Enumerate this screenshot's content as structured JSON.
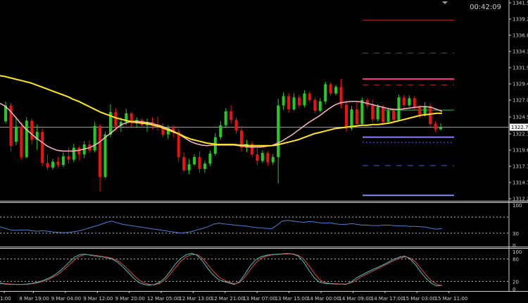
{
  "clock": "00:42:09",
  "chart_data": {
    "type": "candlestick",
    "main": {
      "price_ticks": [
        "1341.5",
        "1339.2",
        "1336.8",
        "1334.3",
        "1331.9",
        "1329.4",
        "1327.0",
        "1324.5",
        "1322.1",
        "1319.6",
        "1317.1",
        "1314.7",
        "1312.2"
      ],
      "current_price": "1322.7",
      "current_price_value": 1322.7,
      "ylim": [
        1311.9,
        1341.6
      ],
      "candles": [
        [
          1323.6,
          1326.6,
          1323.3,
          1326.0
        ],
        [
          1326.0,
          1326.4,
          1319.0,
          1319.9
        ],
        [
          1320.5,
          1324.0,
          1320.0,
          1322.8
        ],
        [
          1322.8,
          1323.5,
          1317.8,
          1318.2
        ],
        [
          1318.2,
          1324.2,
          1318.0,
          1323.7
        ],
        [
          1323.7,
          1324.0,
          1320.1,
          1320.8
        ],
        [
          1320.8,
          1323.1,
          1319.3,
          1322.0
        ],
        [
          1322.0,
          1322.5,
          1316.8,
          1317.3
        ],
        [
          1317.3,
          1318.6,
          1316.2,
          1316.6
        ],
        [
          1316.6,
          1317.9,
          1316.3,
          1317.5
        ],
        [
          1317.5,
          1318.2,
          1316.6,
          1317.0
        ],
        [
          1317.0,
          1318.9,
          1316.7,
          1318.3
        ],
        [
          1318.3,
          1319.6,
          1317.2,
          1317.8
        ],
        [
          1317.8,
          1320.2,
          1317.4,
          1319.6
        ],
        [
          1319.6,
          1319.9,
          1317.7,
          1318.6
        ],
        [
          1318.6,
          1320.6,
          1318.0,
          1320.1
        ],
        [
          1320.1,
          1320.7,
          1318.8,
          1319.2
        ],
        [
          1319.2,
          1323.5,
          1318.9,
          1322.9
        ],
        [
          1322.9,
          1323.2,
          1313.0,
          1315.2
        ],
        [
          1315.2,
          1322.0,
          1315.0,
          1321.6
        ],
        [
          1321.6,
          1326.2,
          1321.2,
          1325.0
        ],
        [
          1325.0,
          1325.6,
          1322.1,
          1322.9
        ],
        [
          1322.9,
          1324.2,
          1322.0,
          1323.5
        ],
        [
          1323.5,
          1325.5,
          1323.0,
          1324.8
        ],
        [
          1324.8,
          1325.0,
          1322.7,
          1323.3
        ],
        [
          1323.3,
          1324.2,
          1322.6,
          1323.8
        ],
        [
          1323.8,
          1324.1,
          1322.6,
          1323.0
        ],
        [
          1323.0,
          1324.0,
          1322.0,
          1323.5
        ],
        [
          1323.5,
          1324.2,
          1322.4,
          1323.0
        ],
        [
          1323.0,
          1324.3,
          1322.2,
          1322.8
        ],
        [
          1322.8,
          1323.3,
          1321.2,
          1321.6
        ],
        [
          1321.6,
          1323.0,
          1320.9,
          1322.6
        ],
        [
          1322.6,
          1323.0,
          1321.2,
          1322.0
        ],
        [
          1322.0,
          1322.5,
          1317.5,
          1318.2
        ],
        [
          1318.2,
          1318.9,
          1315.9,
          1316.2
        ],
        [
          1316.2,
          1317.9,
          1315.6,
          1317.1
        ],
        [
          1317.1,
          1318.6,
          1316.9,
          1318.2
        ],
        [
          1318.2,
          1319.1,
          1315.8,
          1316.4
        ],
        [
          1316.4,
          1317.6,
          1315.8,
          1317.2
        ],
        [
          1317.2,
          1319.2,
          1316.8,
          1318.7
        ],
        [
          1318.7,
          1321.8,
          1318.4,
          1321.2
        ],
        [
          1321.2,
          1323.6,
          1320.8,
          1323.0
        ],
        [
          1323.0,
          1325.6,
          1322.6,
          1325.1
        ],
        [
          1325.1,
          1326.0,
          1323.2,
          1323.8
        ],
        [
          1323.8,
          1324.2,
          1321.7,
          1322.2
        ],
        [
          1322.2,
          1322.9,
          1319.0,
          1319.6
        ],
        [
          1319.6,
          1320.8,
          1318.9,
          1320.2
        ],
        [
          1320.2,
          1320.6,
          1318.2,
          1318.6
        ],
        [
          1318.6,
          1319.6,
          1317.0,
          1317.6
        ],
        [
          1317.6,
          1319.2,
          1317.3,
          1318.8
        ],
        [
          1318.8,
          1319.1,
          1316.9,
          1317.4
        ],
        [
          1317.4,
          1318.6,
          1317.0,
          1318.2
        ],
        [
          1318.2,
          1327.0,
          1314.2,
          1326.0
        ],
        [
          1326.0,
          1328.0,
          1325.3,
          1327.4
        ],
        [
          1327.4,
          1327.9,
          1324.9,
          1325.4
        ],
        [
          1325.4,
          1327.8,
          1325.2,
          1327.2
        ],
        [
          1327.2,
          1327.6,
          1325.6,
          1326.0
        ],
        [
          1326.0,
          1328.3,
          1325.7,
          1327.8
        ],
        [
          1327.8,
          1328.1,
          1326.4,
          1326.8
        ],
        [
          1326.8,
          1327.2,
          1324.8,
          1325.2
        ],
        [
          1325.2,
          1327.1,
          1325.0,
          1326.6
        ],
        [
          1326.6,
          1329.6,
          1326.2,
          1329.2
        ],
        [
          1329.2,
          1329.5,
          1327.4,
          1327.8
        ],
        [
          1327.8,
          1329.1,
          1327.5,
          1328.8
        ],
        [
          1328.8,
          1330.0,
          1325.6,
          1326.1
        ],
        [
          1326.1,
          1326.8,
          1322.0,
          1322.5
        ],
        [
          1322.5,
          1325.9,
          1322.2,
          1325.4
        ],
        [
          1325.4,
          1326.5,
          1322.8,
          1323.2
        ],
        [
          1323.2,
          1327.2,
          1322.9,
          1326.8
        ],
        [
          1326.8,
          1327.1,
          1325.5,
          1326.0
        ],
        [
          1326.0,
          1326.9,
          1323.4,
          1323.9
        ],
        [
          1323.9,
          1326.2,
          1323.6,
          1325.8
        ],
        [
          1325.8,
          1326.1,
          1323.0,
          1323.5
        ],
        [
          1323.5,
          1325.6,
          1323.2,
          1325.2
        ],
        [
          1325.2,
          1325.5,
          1323.3,
          1323.8
        ],
        [
          1323.8,
          1327.6,
          1323.6,
          1327.2
        ],
        [
          1327.2,
          1327.6,
          1325.6,
          1326.0
        ],
        [
          1326.0,
          1327.5,
          1325.8,
          1327.1
        ],
        [
          1327.1,
          1327.4,
          1325.2,
          1325.7
        ],
        [
          1325.7,
          1326.1,
          1324.1,
          1324.6
        ],
        [
          1324.6,
          1326.5,
          1324.3,
          1325.9
        ],
        [
          1325.9,
          1326.3,
          1322.8,
          1323.2
        ],
        [
          1323.2,
          1323.6,
          1322.0,
          1322.4
        ],
        [
          1322.4,
          1323.3,
          1322.2,
          1322.7
        ]
      ],
      "ma_yellow": [
        1330.5,
        1330.4,
        1330.2,
        1330.0,
        1329.8,
        1329.6,
        1329.4,
        1329.1,
        1328.8,
        1328.5,
        1328.2,
        1327.9,
        1327.6,
        1327.3,
        1326.9,
        1326.6,
        1326.2,
        1325.8,
        1325.4,
        1325.0,
        1324.7,
        1324.4,
        1324.1,
        1323.9,
        1323.7,
        1323.5,
        1323.4,
        1323.3,
        1323.2,
        1323.0,
        1322.8,
        1322.5,
        1322.2,
        1321.9,
        1321.6,
        1321.2,
        1320.9,
        1320.7,
        1320.5,
        1320.3,
        1320.2,
        1320.1,
        1320.1,
        1320.1,
        1320.1,
        1320.0,
        1320.0,
        1319.9,
        1319.9,
        1319.9,
        1319.9,
        1319.9,
        1320.0,
        1320.2,
        1320.4,
        1320.6,
        1320.8,
        1321.1,
        1321.4,
        1321.7,
        1321.9,
        1322.1,
        1322.3,
        1322.5,
        1322.6,
        1322.7,
        1322.8,
        1322.9,
        1323.0,
        1323.0,
        1323.1,
        1323.1,
        1323.2,
        1323.3,
        1323.5,
        1323.7,
        1323.9,
        1324.1,
        1324.3,
        1324.5,
        1324.6,
        1324.7,
        1324.8,
        1324.8
      ],
      "ma_pink": [
        1326.4,
        1326.0,
        1325.3,
        1324.4,
        1323.4,
        1322.5,
        1321.8,
        1321.1,
        1320.5,
        1319.9,
        1319.5,
        1319.2,
        1319.1,
        1319.1,
        1319.1,
        1319.2,
        1319.4,
        1319.6,
        1320.0,
        1320.5,
        1321.2,
        1321.8,
        1322.5,
        1323.1,
        1323.4,
        1323.6,
        1323.6,
        1323.5,
        1323.4,
        1323.2,
        1323.0,
        1322.7,
        1322.4,
        1322.0,
        1321.5,
        1321.0,
        1320.5,
        1320.2,
        1320.0,
        1319.9,
        1320.0,
        1320.0,
        1320.0,
        1320.0,
        1320.0,
        1319.9,
        1319.8,
        1319.7,
        1319.7,
        1319.7,
        1319.8,
        1319.9,
        1320.2,
        1320.6,
        1321.1,
        1321.6,
        1322.2,
        1322.8,
        1323.4,
        1323.9,
        1324.4,
        1325.0,
        1325.6,
        1326.1,
        1326.4,
        1326.5,
        1326.6,
        1326.6,
        1326.5,
        1326.3,
        1326.1,
        1325.9,
        1325.7,
        1325.5,
        1325.4,
        1325.4,
        1325.5,
        1325.6,
        1325.7,
        1325.8,
        1325.8,
        1325.7,
        1325.4,
        1325.1
      ],
      "levels": [
        {
          "price": 1338.9,
          "color": "#b0202a",
          "style": "solid",
          "width": 1
        },
        {
          "price": 1333.9,
          "color": "#b0202a",
          "style": "dashed",
          "width": 1
        },
        {
          "price": 1330.0,
          "color": "#ff2a8a",
          "style": "solid",
          "width": 2
        },
        {
          "price": 1329.1,
          "color": "#b0202a",
          "style": "dashed",
          "width": 1
        },
        {
          "price": 1325.3,
          "color": "#2fbf55",
          "style": "solid",
          "width": 1
        },
        {
          "price": 1321.2,
          "color": "#8a7cff",
          "style": "solid",
          "width": 2
        },
        {
          "price": 1320.4,
          "color": "#4466ff",
          "style": "dotted",
          "width": 1
        },
        {
          "price": 1316.9,
          "color": "#3a5fd8",
          "style": "dashed",
          "width": 1
        },
        {
          "price": 1312.4,
          "color": "#7a8cff",
          "style": "solid",
          "width": 2
        }
      ],
      "up_color": "#22cc22",
      "down_color": "#ee1111",
      "ma_yellow_color": "#ffe81a",
      "ma_pink_color": "#ffb6c8"
    },
    "rsi": {
      "ticks": [
        "100",
        "30",
        "0"
      ],
      "ylim": [
        0,
        100
      ],
      "levels": [
        70,
        30
      ],
      "color": "#4a7fd0",
      "values": [
        46,
        42,
        38,
        37,
        38,
        38,
        36,
        35,
        36,
        35,
        33,
        32,
        31,
        32,
        34,
        36,
        40,
        44,
        48,
        52,
        57,
        60,
        56,
        52,
        50,
        48,
        46,
        44,
        42,
        40,
        38,
        36,
        34,
        32,
        30,
        32,
        34,
        38,
        42,
        46,
        52,
        55,
        53,
        52,
        50,
        49,
        48,
        46,
        44,
        43,
        42,
        41,
        50,
        60,
        62,
        60,
        58,
        57,
        59,
        58,
        56,
        55,
        56,
        53,
        52,
        52,
        54,
        52,
        50,
        50,
        49,
        49,
        50,
        50,
        49,
        48,
        48,
        47,
        47,
        46,
        45,
        42,
        40,
        42
      ]
    },
    "stoch": {
      "ticks": [
        "100",
        "80",
        "20",
        "0"
      ],
      "ylim": [
        0,
        100
      ],
      "levels": [
        80,
        20
      ],
      "main_color": "#3fc8c8",
      "signal_color": "#e04040",
      "main": [
        15,
        13,
        12,
        12,
        12,
        13,
        15,
        18,
        22,
        28,
        35,
        45,
        58,
        72,
        85,
        92,
        93,
        90,
        88,
        86,
        84,
        80,
        72,
        60,
        45,
        30,
        18,
        12,
        10,
        12,
        18,
        30,
        48,
        68,
        82,
        92,
        95,
        90,
        75,
        55,
        38,
        25,
        20,
        16,
        12,
        20,
        40,
        62,
        78,
        86,
        90,
        92,
        93,
        94,
        95,
        93,
        88,
        72,
        50,
        30,
        18,
        15,
        14,
        13,
        13,
        12,
        20,
        30,
        38,
        45,
        52,
        58,
        65,
        72,
        80,
        85,
        88,
        80,
        65,
        45,
        28,
        15,
        8,
        10
      ],
      "signal": [
        16,
        14,
        13,
        12,
        12,
        12,
        14,
        16,
        20,
        25,
        32,
        40,
        52,
        65,
        78,
        88,
        92,
        91,
        89,
        87,
        85,
        82,
        76,
        66,
        52,
        38,
        25,
        16,
        12,
        11,
        15,
        25,
        40,
        58,
        75,
        86,
        92,
        92,
        82,
        65,
        48,
        33,
        24,
        18,
        14,
        17,
        32,
        52,
        70,
        82,
        88,
        91,
        92,
        93,
        94,
        94,
        90,
        80,
        62,
        42,
        25,
        17,
        15,
        14,
        13,
        13,
        17,
        25,
        34,
        41,
        48,
        55,
        62,
        69,
        76,
        82,
        86,
        83,
        72,
        55,
        37,
        22,
        12,
        9
      ]
    },
    "time_ticks": [
      "1:00",
      "8 Mar 19:00",
      "9 Mar 04:00",
      "9 Mar 12:00",
      "9 Mar 20:00",
      "12 Mar 05:00",
      "12 Mar 13:00",
      "12 Mar 21:00",
      "13 Mar 07:00",
      "13 Mar 15:00",
      "14 Mar 00:00",
      "14 Mar 09:00",
      "14 Mar 17:00",
      "15 Mar 03:00",
      "15 Mar 11:00"
    ]
  }
}
